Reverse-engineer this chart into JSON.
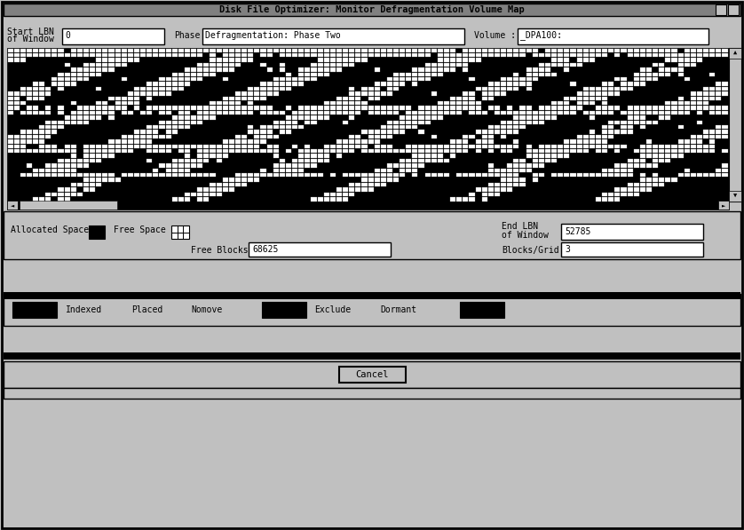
{
  "title": "Disk File Optimizer: Monitor Defragmentation Volume Map",
  "start_lbn_value": "0",
  "phase_value": "Defragmentation: Phase Two",
  "volume_value": "_DPA100:",
  "end_lbn_value": "52785",
  "free_blocks_value": "68625",
  "blocks_grid_value": "3",
  "bg_color": "#c0c0c0",
  "black": "#000000",
  "white": "#ffffff",
  "title_bar_color": "#808080",
  "seed": 7
}
